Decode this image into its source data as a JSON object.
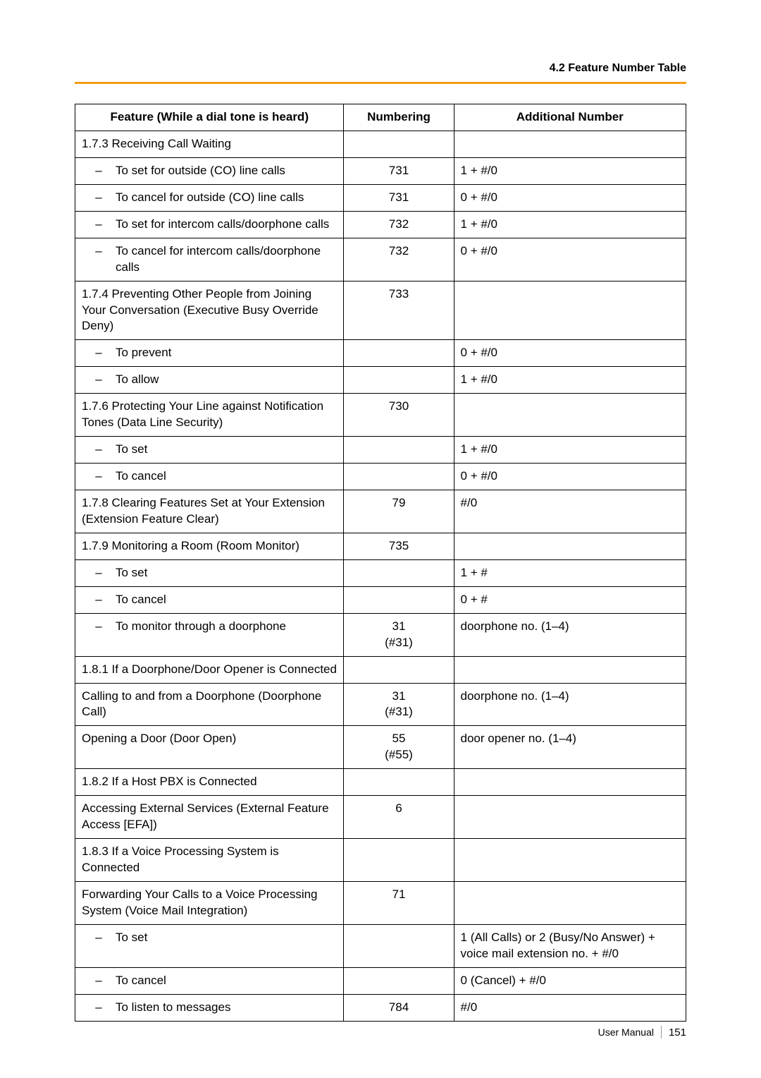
{
  "header": {
    "section_title": "4.2 Feature Number Table"
  },
  "accent_color": "#f39c12",
  "table": {
    "columns": {
      "feature": "Feature (While a dial tone is heard)",
      "numbering": "Numbering",
      "additional": "Additional Number"
    },
    "rows": [
      {
        "type": "heading",
        "feature": "1.7.3 Receiving Call Waiting",
        "numbering": "",
        "additional": ""
      },
      {
        "type": "sub",
        "feature": "To set for outside (CO) line calls",
        "numbering": "731",
        "additional": "1 + #/0"
      },
      {
        "type": "sub",
        "feature": "To cancel for outside (CO) line calls",
        "numbering": "731",
        "additional": "0 + #/0"
      },
      {
        "type": "sub",
        "feature": "To set for intercom calls/doorphone calls",
        "numbering": "732",
        "additional": "1 + #/0"
      },
      {
        "type": "sub",
        "feature": "To cancel for intercom calls/doorphone calls",
        "numbering": "732",
        "additional": "0 + #/0"
      },
      {
        "type": "heading",
        "feature": "1.7.4 Preventing Other People from Joining Your Conversation (Executive Busy Override Deny)",
        "numbering": "733",
        "additional": ""
      },
      {
        "type": "sub",
        "feature": "To prevent",
        "numbering": "",
        "additional": "0 + #/0"
      },
      {
        "type": "sub",
        "feature": "To allow",
        "numbering": "",
        "additional": "1 + #/0"
      },
      {
        "type": "heading",
        "feature": "1.7.6 Protecting Your Line against Notification Tones (Data Line Security)",
        "numbering": "730",
        "additional": ""
      },
      {
        "type": "sub",
        "feature": "To set",
        "numbering": "",
        "additional": "1 + #/0"
      },
      {
        "type": "sub",
        "feature": "To cancel",
        "numbering": "",
        "additional": "0 + #/0"
      },
      {
        "type": "heading",
        "feature": "1.7.8 Clearing Features Set at Your Extension (Extension Feature Clear)",
        "numbering": "79",
        "additional": "#/0"
      },
      {
        "type": "heading",
        "feature": "1.7.9 Monitoring a Room (Room Monitor)",
        "numbering": "735",
        "additional": ""
      },
      {
        "type": "sub",
        "feature": "To set",
        "numbering": "",
        "additional": "1 + #"
      },
      {
        "type": "sub",
        "feature": "To cancel",
        "numbering": "",
        "additional": "0 + #"
      },
      {
        "type": "sub",
        "feature": "To monitor through a doorphone",
        "numbering": "31\n(#31)",
        "additional": "doorphone no. (1–4)"
      },
      {
        "type": "heading",
        "feature": "1.8.1 If a Doorphone/Door Opener is Connected",
        "numbering": "",
        "additional": ""
      },
      {
        "type": "plain",
        "feature": "Calling to and from a Doorphone (Doorphone Call)",
        "numbering": "31\n(#31)",
        "additional": "doorphone no. (1–4)"
      },
      {
        "type": "plain",
        "feature": "Opening a Door (Door Open)",
        "numbering": "55\n(#55)",
        "additional": "door opener no. (1–4)"
      },
      {
        "type": "heading",
        "feature": "1.8.2 If a Host PBX is Connected",
        "numbering": "",
        "additional": ""
      },
      {
        "type": "plain",
        "feature": "Accessing External Services (External Feature Access [EFA])",
        "numbering": "6",
        "additional": ""
      },
      {
        "type": "heading",
        "feature": "1.8.3 If a Voice Processing System is Connected",
        "numbering": "",
        "additional": ""
      },
      {
        "type": "plain",
        "feature": "Forwarding Your Calls to a Voice Processing System (Voice Mail Integration)",
        "numbering": "71",
        "additional": ""
      },
      {
        "type": "sub",
        "feature": "To set",
        "numbering": "",
        "additional": "1 (All Calls) or 2 (Busy/No Answer) + voice mail extension no. + #/0"
      },
      {
        "type": "sub",
        "feature": "To cancel",
        "numbering": "",
        "additional": "0 (Cancel) + #/0"
      },
      {
        "type": "sub",
        "feature": "To listen to messages",
        "numbering": "784",
        "additional": "#/0"
      }
    ]
  },
  "footer": {
    "label": "User Manual",
    "page_number": "151"
  }
}
